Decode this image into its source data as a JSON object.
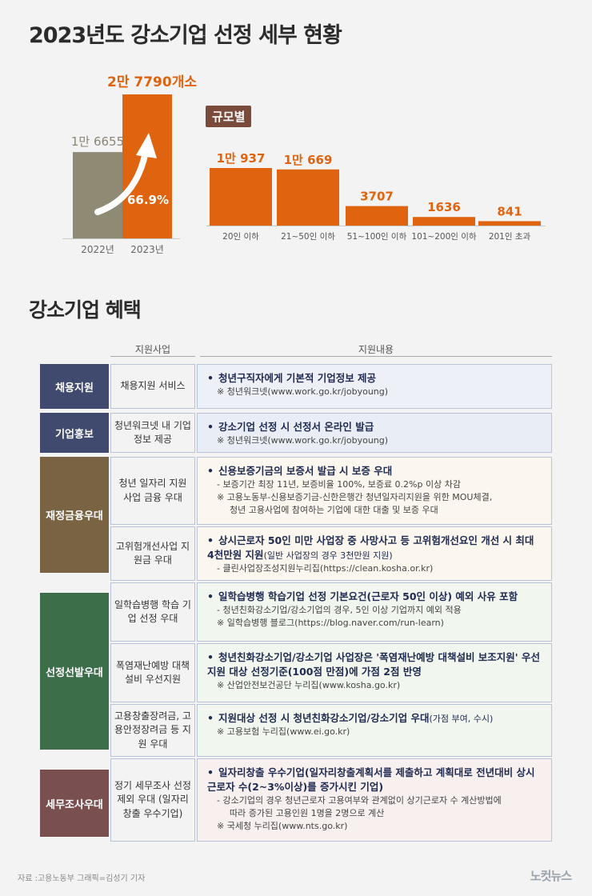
{
  "title": "2023년도 강소기업 선정 세부 현황",
  "scale_label": "규모별",
  "chart_data": [
    {
      "type": "bar",
      "categories": [
        "2022년",
        "2023년"
      ],
      "values": [
        16655,
        27790
      ],
      "value_labels": [
        "1만 6655",
        "2만 7790개소"
      ],
      "growth_label": "66.9%",
      "colors": [
        "#8f8a74",
        "#e06410"
      ]
    },
    {
      "type": "bar",
      "categories": [
        "20인 이하",
        "21~50인 이하",
        "51~100인 이하",
        "101~200인 이하",
        "201인 초과"
      ],
      "values": [
        10937,
        10669,
        3707,
        1636,
        841
      ],
      "value_labels": [
        "1만 937",
        "1만 669",
        "3707",
        "1636",
        "841"
      ],
      "colors": [
        "#e06410"
      ]
    }
  ],
  "benefits": {
    "title": "강소기업 혜택",
    "header_program": "지원사업",
    "header_content": "지원내용",
    "categories": [
      {
        "label": "채용지원",
        "color": "#3f4a6e"
      },
      {
        "label": "기업홍보",
        "color": "#3f4a6e"
      },
      {
        "label": "재정금융우대",
        "color": "#7a6342"
      },
      {
        "label": "선정선발우대",
        "color": "#3c6e4a"
      },
      {
        "label": "세무조사우대",
        "color": "#7a4f4f"
      }
    ],
    "rows": [
      {
        "program": "채용지원 서비스",
        "main": "청년구직자에게 기본적 기업정보 제공",
        "main_small": "",
        "subs": [
          "※ 청년워크넷(www.work.go.kr/jobyoung)"
        ]
      },
      {
        "program": "청년워크넷 내 기업정보 제공",
        "main": "강소기업 선정 시 선정서 온라인 발급",
        "main_small": "",
        "subs": [
          "※ 청년워크넷(www.work.go.kr/jobyoung)"
        ]
      },
      {
        "program": "청년 일자리 지원 사업 금융 우대",
        "main": "신용보증기금의 보증서 발급 시 보증 우대",
        "main_small": "",
        "subs": [
          "- 보증기간 최장 11년, 보증비율 100%, 보증료 0.2%p 이상 차감",
          "※ 고용노동부-신용보증기금-신한은행간 청년일자리지원을 위한 MOU체결,",
          "청년 고용사업에 참여하는 기업에 대한 대출 및 보증 우대"
        ]
      },
      {
        "program": "고위험개선사업 지원금 우대",
        "main": "상시근로자 50인 미만 사업장 중 사망사고 등 고위험개선요인 개선 시 최대 4천만원 지원",
        "main_small": "(일반 사업장의 경우 3천만원 지원)",
        "subs": [
          "- 클린사업장조성지원누리집(https://clean.kosha.or.kr)"
        ]
      },
      {
        "program": "일학습병행 학습 기업 선정 우대",
        "main": "일학습병행 학습기업 선정 기본요건(근로자 50인 이상) 예외 사유 포함",
        "main_small": "",
        "subs": [
          "- 청년친화강소기업/강소기업의 경우, 5인 이상 기업까지 예외 적용",
          "※ 일학습병행 블로그(https://blog.naver.com/run-learn)"
        ]
      },
      {
        "program": "폭염재난예방 대책 설비 우선지원",
        "main": "청년친화강소기업/강소기업 사업장은 '폭염재난예방 대책설비 보조지원' 우선지원 대상 선정기준(100점 만점)에 가점 2점 반영",
        "main_small": "",
        "subs": [
          "※ 산업안전보건공단 누리집(www.kosha.go.kr)"
        ]
      },
      {
        "program": "고용창출장려금, 고용안정장려금 등 지원 우대",
        "main": "지원대상 선정 시 청년친화강소기업/강소기업 우대",
        "main_small": "(가점 부여, 수시)",
        "subs": [
          "※ 고용보험 누리집(www.ei.go.kr)"
        ]
      },
      {
        "program": "정기 세무조사 선정 제외 우대 (일자리창출 우수기업)",
        "main": "일자리창출 우수기업(일자리창출계획서를 제출하고 계획대로 전년대비 상시근로자 수(2~3%이상)를 증가시킨 기업)",
        "main_small": "",
        "subs": [
          "- 강소기업의 경우 청년근로자 고용여부와 관계없이 상기근로자 수 계산방법에",
          "따라 증가된 고용인원 1명을 2명으로 계산",
          "※ 국세청 누리집(www.nts.go.kr)"
        ]
      }
    ]
  },
  "footer": "자료 :고용노동부    그래픽=김성기 기자",
  "logo": "노컷뉴스"
}
